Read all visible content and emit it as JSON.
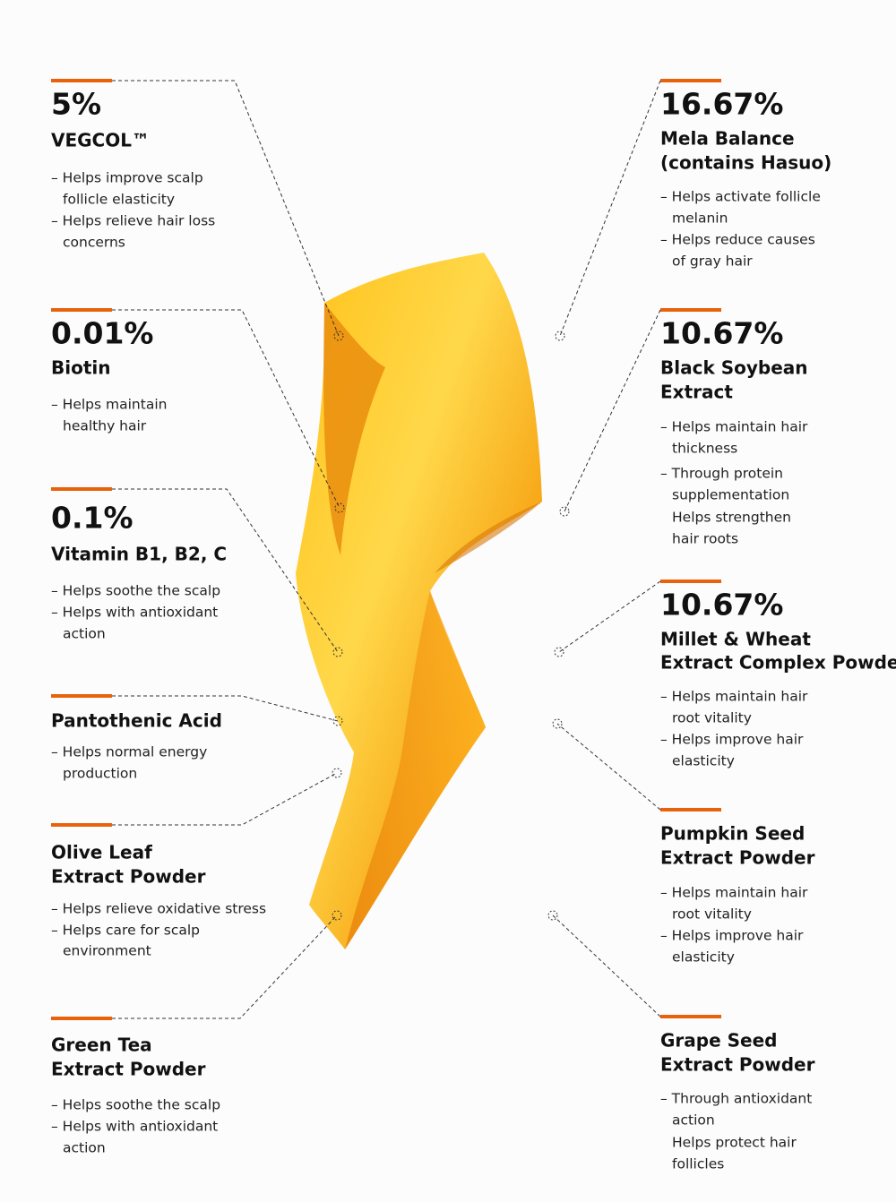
{
  "left": [
    {
      "percent": "5%",
      "name": [
        "VEGCOL™"
      ],
      "bullets": [
        "– Helps improve scalp",
        "follicle elasticity",
        "– Helps relieve hair loss",
        "concerns"
      ]
    },
    {
      "percent": "0.01%",
      "name": [
        "Biotin"
      ],
      "bullets": [
        "– Helps maintain",
        "healthy hair"
      ]
    },
    {
      "percent": "0.1%",
      "name": [
        "Vitamin B1, B2, C"
      ],
      "bullets": [
        "– Helps soothe the scalp",
        "– Helps with antioxidant",
        "action"
      ]
    },
    {
      "name": [
        "Pantothenic Acid"
      ],
      "bullets": [
        "– Helps normal energy",
        "production"
      ]
    },
    {
      "name": [
        "Olive Leaf",
        "Extract Powder"
      ],
      "bullets": [
        "– Helps relieve oxidative stress",
        "– Helps care for scalp",
        "environment"
      ]
    },
    {
      "name": [
        "Green Tea",
        "Extract Powder"
      ],
      "bullets": [
        "– Helps soothe the scalp",
        "– Helps with antioxidant",
        "action"
      ]
    }
  ],
  "right": [
    {
      "percent": "16.67%",
      "name": [
        "Mela Balance",
        "(contains Hasuo)"
      ],
      "bullets": [
        "– Helps activate follicle",
        "melanin",
        "– Helps reduce causes",
        "of gray hair"
      ]
    },
    {
      "percent": "10.67%",
      "name": [
        "Black Soybean",
        "Extract"
      ],
      "bullets": [
        "– Helps maintain hair",
        "thickness",
        "– Through protein",
        "supplementation",
        "Helps strengthen",
        "hair roots"
      ]
    },
    {
      "percent": "10.67%",
      "name": [
        "Millet & Wheat",
        "Extract Complex Powder"
      ],
      "bullets": [
        "– Helps maintain hair",
        "root vitality",
        "– Helps improve hair",
        "elasticity"
      ]
    },
    {
      "name": [
        "Pumpkin Seed",
        "Extract Powder"
      ],
      "bullets": [
        "– Helps maintain hair",
        "root vitality",
        "– Helps improve hair",
        "elasticity"
      ]
    },
    {
      "name": [
        "Grape Seed",
        "Extract Powder"
      ],
      "bullets": [
        "– Through antioxidant",
        "action",
        "Helps protect hair",
        "follicles"
      ]
    }
  ]
}
